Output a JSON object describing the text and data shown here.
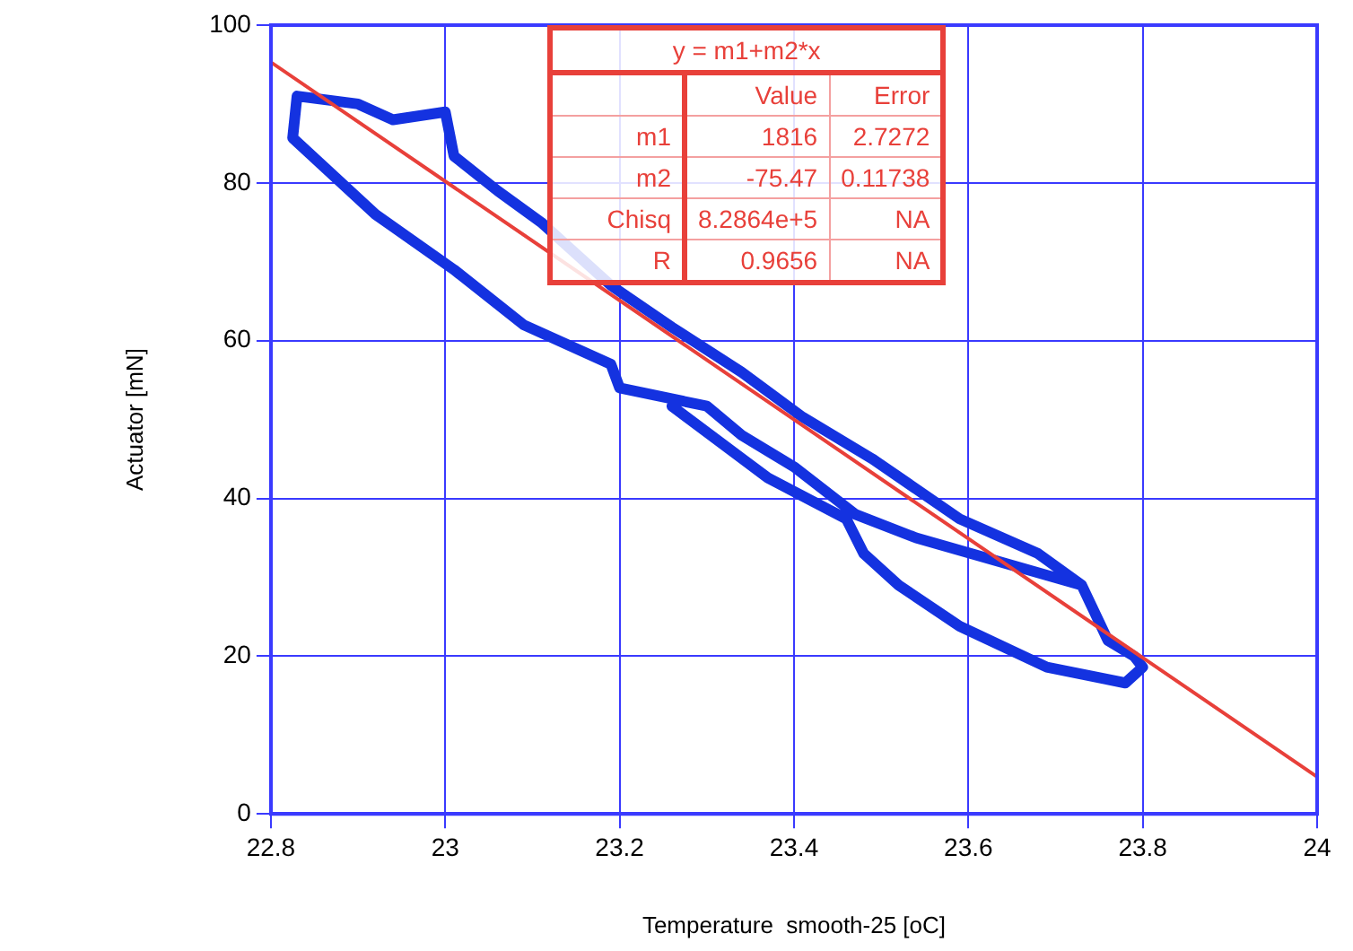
{
  "chart_data": {
    "type": "line",
    "xlabel": "Temperature  smooth-25 [oC]",
    "ylabel": "Actuator [mN]",
    "xlim": [
      22.8,
      24
    ],
    "xticks": [
      22.8,
      23,
      23.2,
      23.4,
      23.6,
      23.8,
      24
    ],
    "ylim": [
      0,
      100
    ],
    "yticks": [
      0,
      20,
      40,
      60,
      80,
      100
    ],
    "grid": true,
    "marker": "none",
    "line_style": "solid",
    "series": [
      {
        "color": "#1432e0",
        "x": [
          23.73,
          23.54,
          23.47,
          23.4,
          23.34,
          23.3,
          23.2,
          23.19,
          23.09,
          23.01,
          22.92,
          22.825,
          22.83,
          22.9,
          22.94,
          23.0,
          23.01,
          23.06,
          23.11,
          23.19,
          23.26,
          23.34,
          23.41,
          23.49,
          23.59,
          23.68,
          23.73,
          23.76,
          23.79,
          23.8,
          23.78,
          23.69,
          23.59,
          23.52,
          23.48,
          23.46,
          23.37,
          23.26
        ],
        "values": [
          29,
          35,
          38,
          44,
          48,
          51.7,
          54,
          57,
          62,
          69,
          76,
          85.7,
          91,
          90,
          88,
          89,
          83.4,
          79,
          75,
          67,
          61.7,
          56,
          50.3,
          45,
          37.4,
          33,
          29,
          22,
          20,
          18.6,
          16.6,
          18.6,
          23.8,
          29,
          33,
          37.4,
          42.6,
          51.7
        ]
      },
      {
        "type": "line",
        "color": "#e8403a",
        "x": [
          22.8,
          24
        ],
        "values": [
          95.3,
          4.7
        ]
      }
    ],
    "annotations": [
      "y = m1+m2*x",
      "Value",
      "Error",
      "m1",
      "1816",
      "2.7272",
      "m2",
      "-75.47",
      "0.11738",
      "Chisq",
      "8.2864e+5",
      "NA",
      "R",
      "0.9656",
      "NA"
    ]
  }
}
